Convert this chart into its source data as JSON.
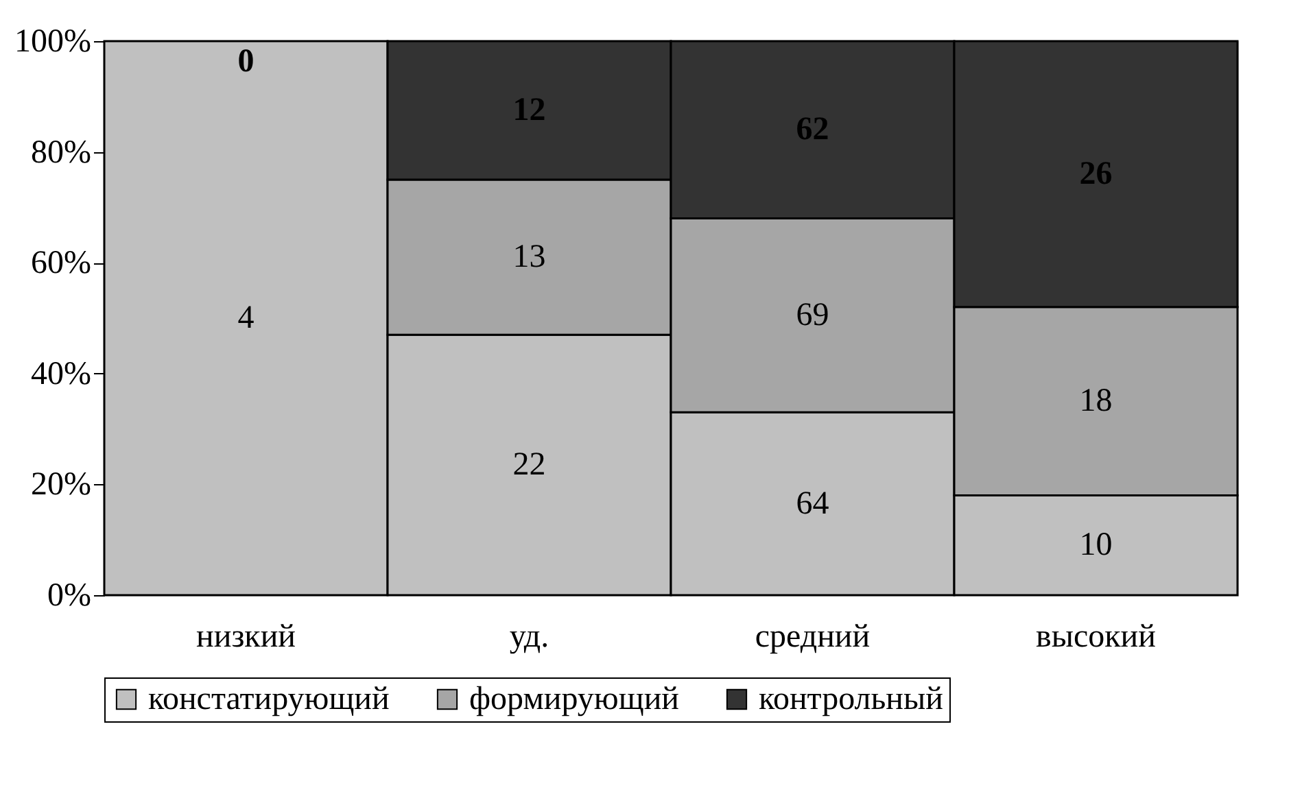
{
  "chart_data": {
    "type": "bar",
    "stacked": true,
    "categories": [
      "низкий",
      "уд.",
      "средний",
      "высокий"
    ],
    "series": [
      {
        "name": "констатирующий",
        "color": "#c0c0c0",
        "values": [
          100,
          47,
          33,
          18
        ]
      },
      {
        "name": "формирующий",
        "color": "#a6a6a6",
        "values": [
          null,
          28,
          35,
          34
        ]
      },
      {
        "name": "контрольный",
        "color": "#333333",
        "values": [
          0,
          25,
          32,
          48
        ]
      }
    ],
    "annotations": [
      "4",
      "0",
      "22",
      "13",
      "12",
      "64",
      "69",
      "62",
      "10",
      "18",
      "26"
    ],
    "ylim": [
      0,
      100
    ],
    "yticks": [
      {
        "value": 0,
        "label": "0%"
      },
      {
        "value": 20,
        "label": "20%"
      },
      {
        "value": 40,
        "label": "40%"
      },
      {
        "value": 60,
        "label": "60%"
      },
      {
        "value": 80,
        "label": "80%"
      },
      {
        "value": 100,
        "label": "100%"
      }
    ],
    "legend": "bottom"
  }
}
